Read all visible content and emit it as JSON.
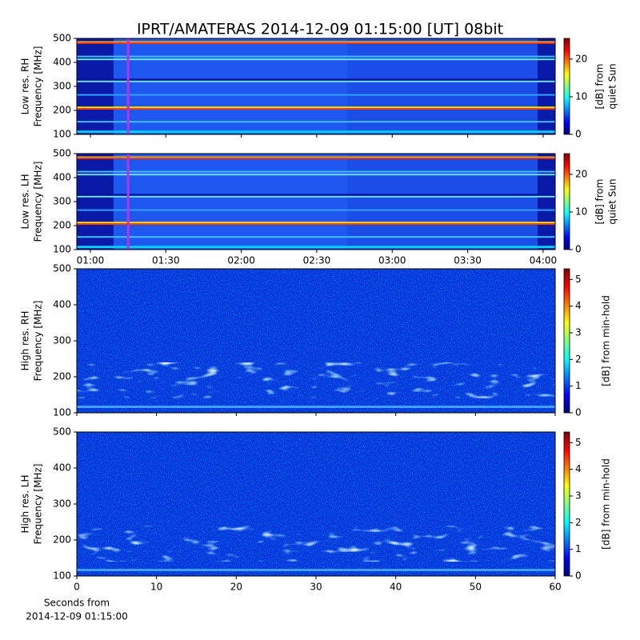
{
  "chart_data": [
    {
      "type": "heatmap",
      "title": "IPRT/AMATERAS 2014-12-09 01:15:00 [UT]   08bit",
      "ylabel": [
        "Low res. RH",
        "Frequency [MHz]"
      ],
      "ylim": [
        100,
        500
      ],
      "yticks": [
        100,
        200,
        300,
        400,
        500
      ],
      "xlim": [
        54.6,
        244.8
      ],
      "marker_x": 75,
      "marker_color": "#c030e0",
      "colorbar": {
        "label": [
          "[dB] from",
          "quiet Sun"
        ],
        "lim": [
          0,
          25.5
        ],
        "ticks": [
          0,
          10,
          20
        ],
        "colormap": "jet"
      }
    },
    {
      "type": "heatmap",
      "ylabel": [
        "Low res. LH",
        "Frequency [MHz]"
      ],
      "ylim": [
        100,
        500
      ],
      "yticks": [
        100,
        200,
        300,
        400,
        500
      ],
      "xlim": [
        54.6,
        244.8
      ],
      "xticks": [
        {
          "value": 60,
          "label": "01:00"
        },
        {
          "value": 90,
          "label": "01:30"
        },
        {
          "value": 120,
          "label": "02:00"
        },
        {
          "value": 150,
          "label": "02:30"
        },
        {
          "value": 180,
          "label": "03:00"
        },
        {
          "value": 210,
          "label": "03:30"
        },
        {
          "value": 240,
          "label": "04:00"
        }
      ],
      "marker_x": 75,
      "marker_color": "#c030e0",
      "colorbar": {
        "label": [
          "[dB] from",
          "quiet Sun"
        ],
        "lim": [
          0,
          25.5
        ],
        "ticks": [
          0,
          10,
          20
        ],
        "colormap": "jet"
      }
    },
    {
      "type": "heatmap",
      "ylabel": [
        "High res. RH",
        "Frequency [MHz]"
      ],
      "ylim": [
        100,
        500
      ],
      "yticks": [
        100,
        200,
        300,
        400,
        500
      ],
      "xlim": [
        0,
        60
      ],
      "colorbar": {
        "label": [
          "[dB] from min-hold"
        ],
        "lim": [
          0,
          5.4
        ],
        "ticks": [
          0,
          1,
          2,
          3,
          4,
          5
        ],
        "colormap": "jet"
      }
    },
    {
      "type": "heatmap",
      "ylabel": [
        "High res. LH",
        "Frequency [MHz]"
      ],
      "ylim": [
        100,
        500
      ],
      "yticks": [
        100,
        200,
        300,
        400,
        500
      ],
      "xlim": [
        0,
        60
      ],
      "xticks": [
        0,
        10,
        20,
        30,
        40,
        50,
        60
      ],
      "xlabel": [
        "Seconds from",
        "2014-12-09 01:15:00"
      ],
      "colorbar": {
        "label": [
          "[dB] from min-hold"
        ],
        "lim": [
          0,
          5.4
        ],
        "ticks": [
          0,
          1,
          2,
          3,
          4,
          5
        ],
        "colormap": "jet"
      }
    }
  ]
}
